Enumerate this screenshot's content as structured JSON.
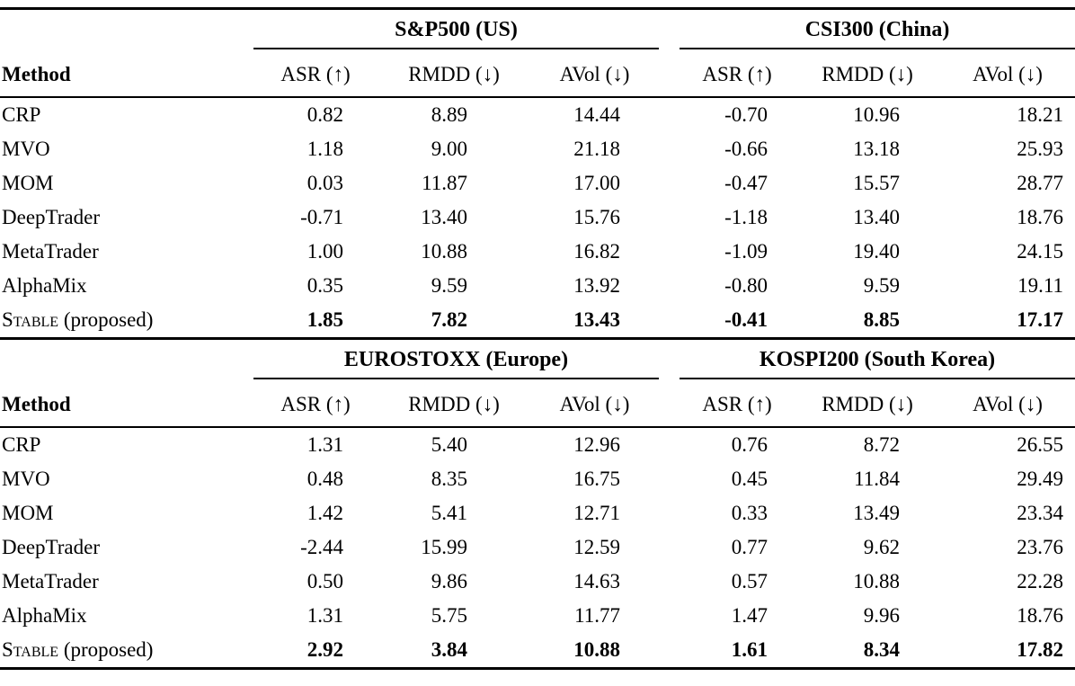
{
  "page": {
    "background": "#ffffff",
    "text_color": "#000000",
    "rule_color": "#000000"
  },
  "tables": [
    {
      "method_header": "Method",
      "metric_headers": [
        "ASR (↑)",
        "RMDD (↓)",
        "AVol (↓)"
      ],
      "groups": [
        {
          "title": "S&P500 (US)"
        },
        {
          "title": "CSI300 (China)"
        }
      ],
      "rows": [
        {
          "method": "CRP",
          "values": [
            "0.82",
            "8.89",
            "14.44",
            "-0.70",
            "10.96",
            "18.21"
          ]
        },
        {
          "method": "MVO",
          "values": [
            "1.18",
            "9.00",
            "21.18",
            "-0.66",
            "13.18",
            "25.93"
          ]
        },
        {
          "method": "MOM",
          "values": [
            "0.03",
            "11.87",
            "17.00",
            "-0.47",
            "15.57",
            "28.77"
          ]
        },
        {
          "method": "DeepTrader",
          "values": [
            "-0.71",
            "13.40",
            "15.76",
            "-1.18",
            "13.40",
            "18.76"
          ]
        },
        {
          "method": "MetaTrader",
          "values": [
            "1.00",
            "10.88",
            "16.82",
            "-1.09",
            "19.40",
            "24.15"
          ]
        },
        {
          "method": "AlphaMix",
          "values": [
            "0.35",
            "9.59",
            "13.92",
            "-0.80",
            "9.59",
            "19.11"
          ]
        },
        {
          "method": "Stable",
          "method_suffix": " (proposed)",
          "smallcaps": true,
          "bold": true,
          "values": [
            "1.85",
            "7.82",
            "13.43",
            "-0.41",
            "8.85",
            "17.17"
          ]
        }
      ]
    },
    {
      "method_header": "Method",
      "metric_headers": [
        "ASR (↑)",
        "RMDD (↓)",
        "AVol (↓)"
      ],
      "groups": [
        {
          "title": "EUROSTOXX (Europe)"
        },
        {
          "title": "KOSPI200 (South Korea)"
        }
      ],
      "rows": [
        {
          "method": "CRP",
          "values": [
            "1.31",
            "5.40",
            "12.96",
            "0.76",
            "8.72",
            "26.55"
          ]
        },
        {
          "method": "MVO",
          "values": [
            "0.48",
            "8.35",
            "16.75",
            "0.45",
            "11.84",
            "29.49"
          ]
        },
        {
          "method": "MOM",
          "values": [
            "1.42",
            "5.41",
            "12.71",
            "0.33",
            "13.49",
            "23.34"
          ]
        },
        {
          "method": "DeepTrader",
          "values": [
            "-2.44",
            "15.99",
            "12.59",
            "0.77",
            "9.62",
            "23.76"
          ]
        },
        {
          "method": "MetaTrader",
          "values": [
            "0.50",
            "9.86",
            "14.63",
            "0.57",
            "10.88",
            "22.28"
          ]
        },
        {
          "method": "AlphaMix",
          "values": [
            "1.31",
            "5.75",
            "11.77",
            "1.47",
            "9.96",
            "18.76"
          ]
        },
        {
          "method": "Stable",
          "method_suffix": " (proposed)",
          "smallcaps": true,
          "bold": true,
          "values": [
            "2.92",
            "3.84",
            "10.88",
            "1.61",
            "8.34",
            "17.82"
          ]
        }
      ]
    }
  ]
}
